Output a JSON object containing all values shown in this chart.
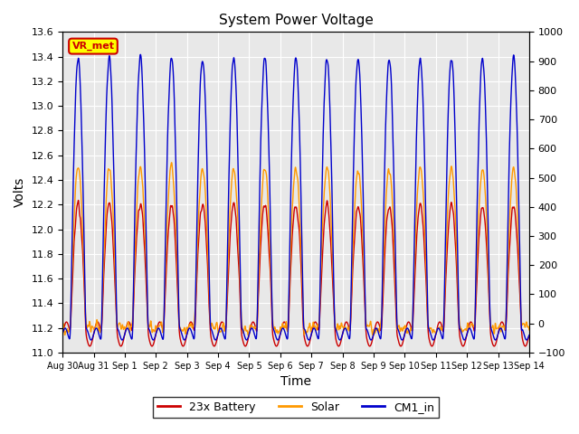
{
  "title": "System Power Voltage",
  "xlabel": "Time",
  "ylabel_left": "Volts",
  "ylabel_right": "",
  "ylim_left": [
    11.0,
    13.6
  ],
  "ylim_right": [
    -100,
    1000
  ],
  "yticks_left": [
    11.0,
    11.2,
    11.4,
    11.6,
    11.8,
    12.0,
    12.2,
    12.4,
    12.6,
    12.8,
    13.0,
    13.2,
    13.4,
    13.6
  ],
  "yticks_right": [
    -100,
    0,
    100,
    200,
    300,
    400,
    500,
    600,
    700,
    800,
    900,
    1000
  ],
  "xtick_labels": [
    "Aug 30",
    "Aug 31",
    "Sep 1",
    "Sep 2",
    "Sep 3",
    "Sep 4",
    "Sep 5",
    "Sep 6",
    "Sep 7",
    "Sep 8",
    "Sep 9",
    "Sep 10",
    "Sep 11",
    "Sep 12",
    "Sep 13",
    "Sep 14"
  ],
  "n_days": 15,
  "background_color": "#ffffff",
  "plot_bg_color": "#e8e8e8",
  "grid_color": "#ffffff",
  "color_battery": "#cc0000",
  "color_solar": "#ff9900",
  "color_cm1": "#0000cc",
  "annotation_text": "VR_met",
  "annotation_bg": "#ffff00",
  "annotation_border": "#cc0000",
  "legend_labels": [
    "23x Battery",
    "Solar",
    "CM1_in"
  ]
}
